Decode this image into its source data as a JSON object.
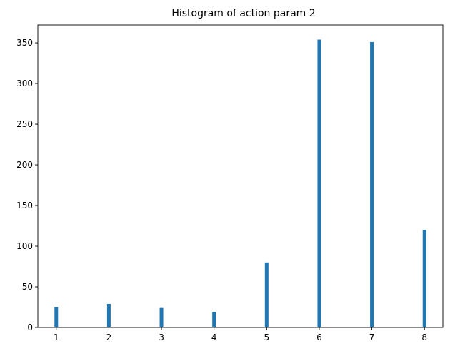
{
  "chart_data": {
    "type": "bar",
    "title": "Histogram of action param 2",
    "xlabel": "",
    "ylabel": "",
    "categories": [
      "1",
      "2",
      "3",
      "4",
      "5",
      "6",
      "7",
      "8"
    ],
    "x": [
      1,
      2,
      3,
      4,
      5,
      6,
      7,
      8
    ],
    "values": [
      25,
      29,
      24,
      19,
      80,
      354,
      351,
      120
    ],
    "xlim": [
      0.65,
      8.35
    ],
    "ylim": [
      0,
      372
    ],
    "yticks": [
      0,
      50,
      100,
      150,
      200,
      250,
      300,
      350
    ],
    "xticks": [
      1,
      2,
      3,
      4,
      5,
      6,
      7,
      8
    ],
    "bar_color": "#1f77b4",
    "grid": false,
    "legend": "none"
  }
}
